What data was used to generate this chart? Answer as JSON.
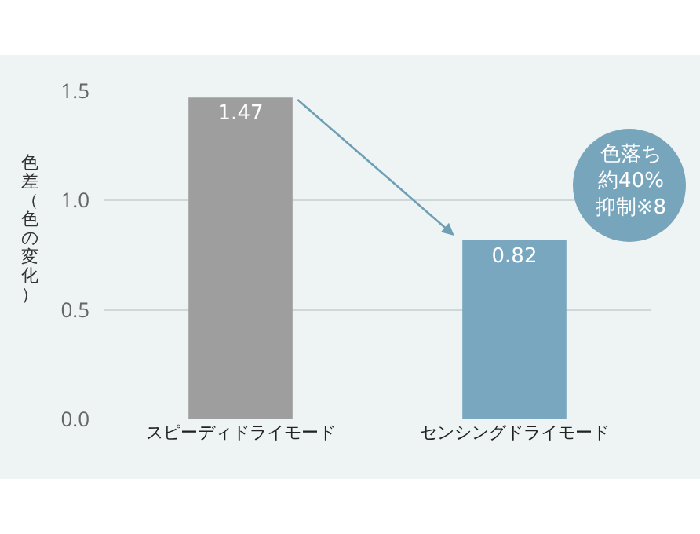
{
  "chart_data": {
    "type": "bar",
    "ylabel": "色差（色の変化）",
    "categories": [
      "スピーディドライモード",
      "センシングドライモード"
    ],
    "values": [
      1.47,
      0.82
    ],
    "colors": [
      "#9e9e9e",
      "#78a7bf"
    ],
    "ylim": [
      0,
      1.5
    ],
    "yticks": [
      {
        "value": 0,
        "label": "0.0"
      },
      {
        "value": 0.5,
        "label": "0.5"
      },
      {
        "value": 1,
        "label": "1.0"
      },
      {
        "value": 1.5,
        "label": "1.5"
      }
    ],
    "grid": "y",
    "data_labels": true,
    "annotations": [
      "色落ち約40%抑制※8"
    ]
  }
}
